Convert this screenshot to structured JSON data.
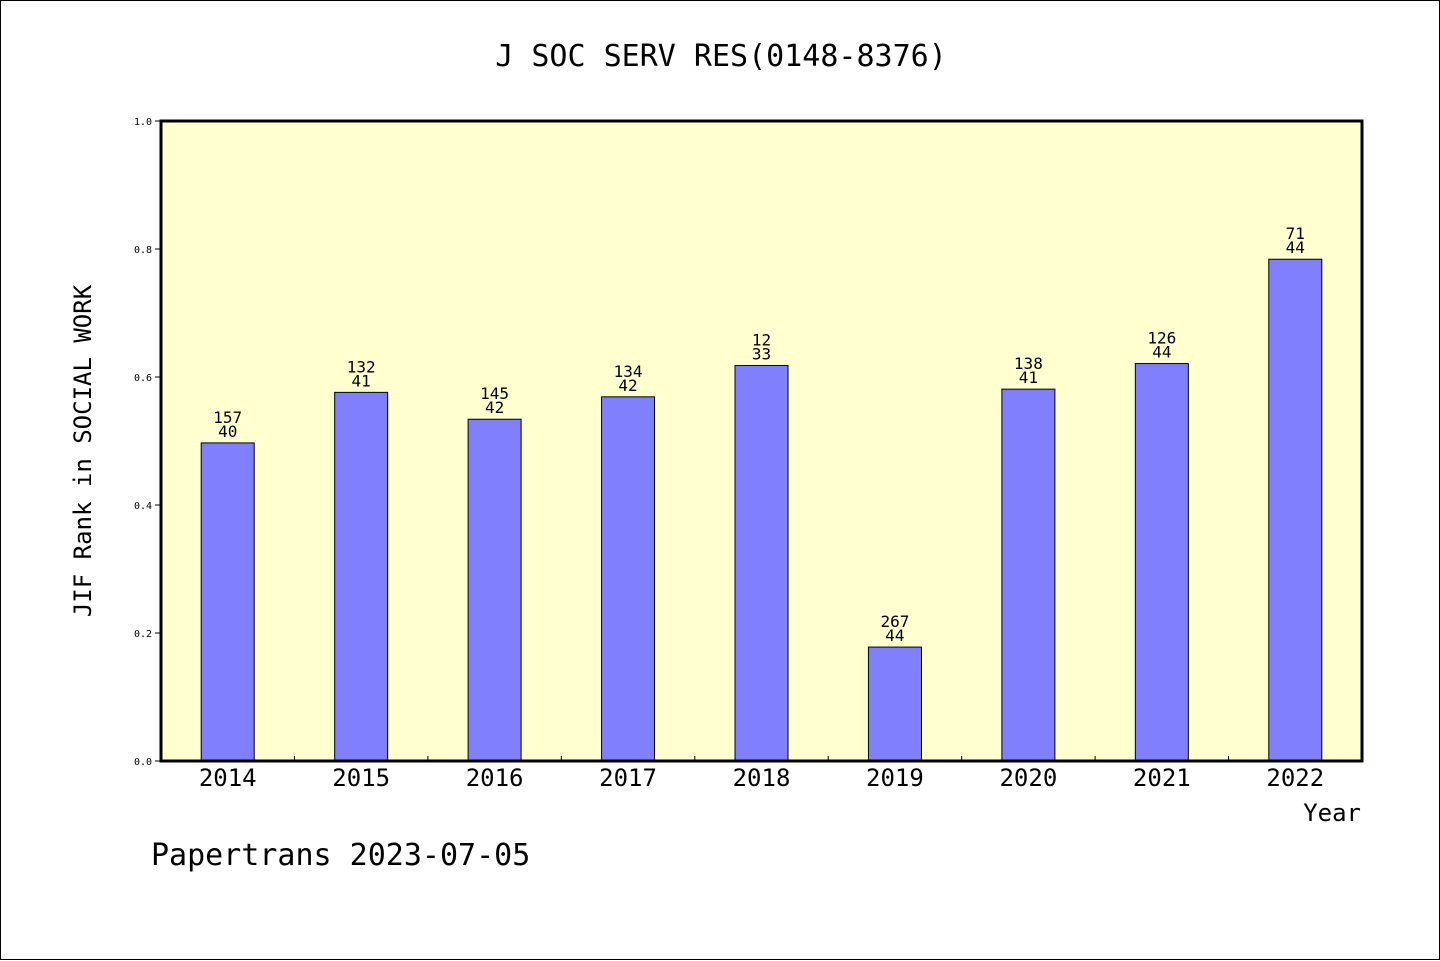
{
  "chart_data": {
    "type": "bar",
    "title": "J SOC SERV RES(0148-8376)",
    "xlabel": "Year",
    "ylabel": "JIF Rank in SOCIAL WORK",
    "ylim": [
      0,
      1.0
    ],
    "yticks": [
      "0.0",
      "0.2",
      "0.4",
      "0.6",
      "0.8",
      "1.0"
    ],
    "grid": false,
    "categories": [
      "2014",
      "2015",
      "2016",
      "2017",
      "2018",
      "2019",
      "2020",
      "2021",
      "2022"
    ],
    "values": [
      0.497,
      0.576,
      0.534,
      0.569,
      0.618,
      0.178,
      0.581,
      0.621,
      0.784
    ],
    "labels_top": [
      "157",
      "132",
      "145",
      "134",
      "12",
      "267",
      "138",
      "126",
      "71"
    ],
    "labels_bottom": [
      "40",
      "41",
      "42",
      "42",
      "33",
      "44",
      "41",
      "44",
      "44"
    ],
    "colors": {
      "bar": "#8080ff",
      "plot_background": "#ffffd0",
      "axis": "#000000"
    }
  },
  "footer": "Papertrans 2023-07-05"
}
